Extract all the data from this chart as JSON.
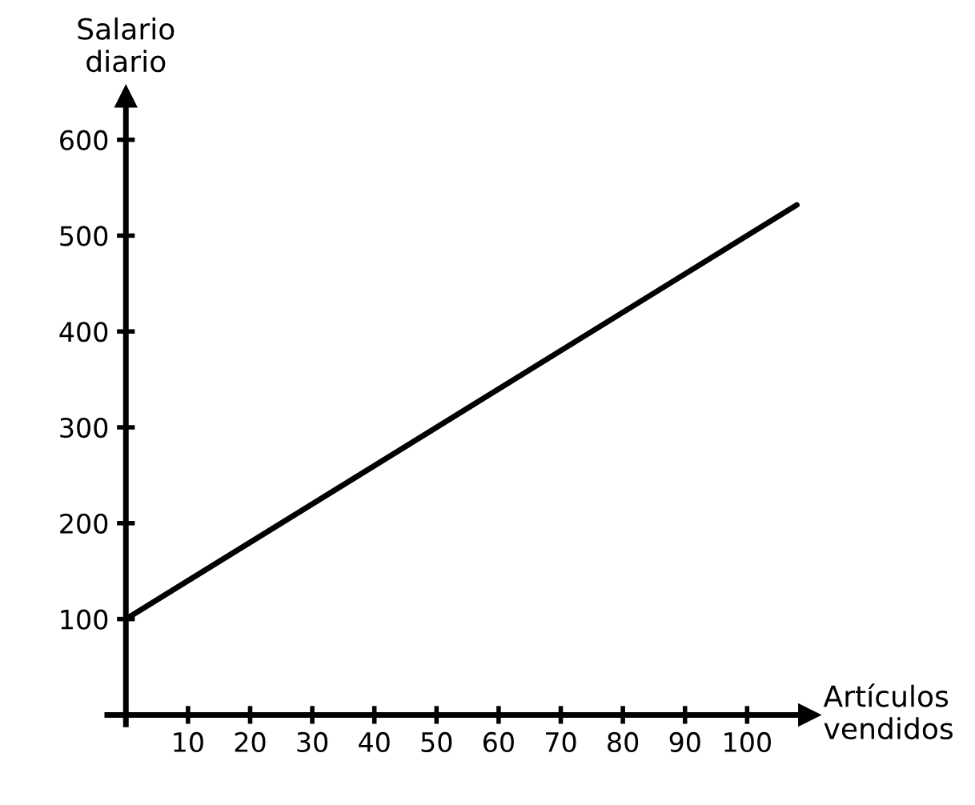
{
  "chart_data": {
    "type": "line",
    "xlabel": "Artículos\nvendidos",
    "ylabel": "Salario\ndiario",
    "x": [
      0,
      108
    ],
    "series": [
      {
        "color": "#000000",
        "values": [
          100,
          532
        ]
      }
    ],
    "xlim": [
      -3,
      110
    ],
    "ylim": [
      -10,
      645
    ],
    "xticks": [
      {
        "value": 0,
        "label": null
      },
      10,
      20,
      30,
      40,
      50,
      60,
      70,
      80,
      90,
      100
    ],
    "yticks": [
      100,
      200,
      300,
      400,
      500,
      600
    ],
    "grid": false,
    "legend": false,
    "marker": "none",
    "line_style": "solid"
  }
}
